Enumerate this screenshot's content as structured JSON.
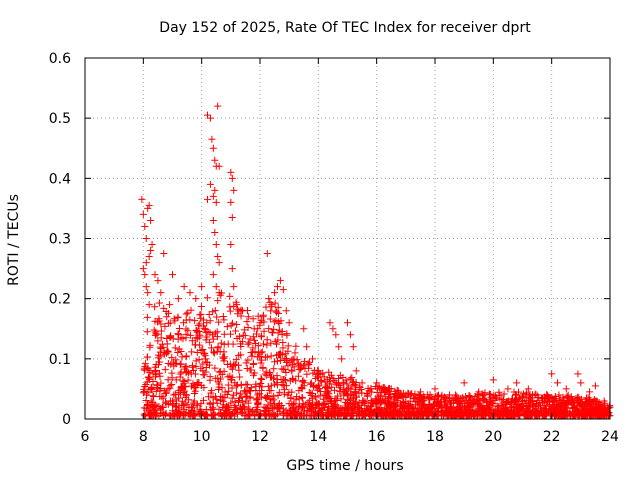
{
  "chart_data": {
    "type": "scatter",
    "title": "Day 152 of 2025, Rate Of TEC Index for receiver dprt",
    "xlabel": "GPS time / hours",
    "ylabel": "ROTI / TECUs",
    "xlim": [
      6,
      24
    ],
    "ylim": [
      0,
      0.6
    ],
    "xticks": [
      "6",
      "8",
      "10",
      "12",
      "14",
      "16",
      "18",
      "20",
      "22",
      "24"
    ],
    "yticks": [
      "0",
      "0.1",
      "0.2",
      "0.3",
      "0.4",
      "0.5",
      "0.6"
    ],
    "grid": true,
    "marker": "+",
    "color": "#ff0000",
    "series": [
      {
        "name": "ROTI",
        "points": [
          [
            7.95,
            0.365
          ],
          [
            8.0,
            0.34
          ],
          [
            8.05,
            0.32
          ],
          [
            8.1,
            0.3
          ],
          [
            8.15,
            0.35
          ],
          [
            8.2,
            0.355
          ],
          [
            8.25,
            0.33
          ],
          [
            8.1,
            0.26
          ],
          [
            8.2,
            0.27
          ],
          [
            8.0,
            0.25
          ],
          [
            8.05,
            0.24
          ],
          [
            8.1,
            0.22
          ],
          [
            8.3,
            0.29
          ],
          [
            8.25,
            0.28
          ],
          [
            8.15,
            0.21
          ],
          [
            8.2,
            0.19
          ],
          [
            8.4,
            0.24
          ],
          [
            8.5,
            0.23
          ],
          [
            8.7,
            0.275
          ],
          [
            8.6,
            0.21
          ],
          [
            8.8,
            0.17
          ],
          [
            8.9,
            0.19
          ],
          [
            9.0,
            0.24
          ],
          [
            9.2,
            0.2
          ],
          [
            9.4,
            0.22
          ],
          [
            9.6,
            0.21
          ],
          [
            9.8,
            0.2
          ],
          [
            10.0,
            0.22
          ],
          [
            10.2,
            0.505
          ],
          [
            10.3,
            0.5
          ],
          [
            10.35,
            0.465
          ],
          [
            10.4,
            0.45
          ],
          [
            10.45,
            0.43
          ],
          [
            10.5,
            0.42
          ],
          [
            10.55,
            0.52
          ],
          [
            10.6,
            0.42
          ],
          [
            10.3,
            0.39
          ],
          [
            10.4,
            0.37
          ],
          [
            10.45,
            0.38
          ],
          [
            10.5,
            0.36
          ],
          [
            10.2,
            0.365
          ],
          [
            10.4,
            0.33
          ],
          [
            10.45,
            0.31
          ],
          [
            10.5,
            0.29
          ],
          [
            10.55,
            0.27
          ],
          [
            10.6,
            0.26
          ],
          [
            10.4,
            0.24
          ],
          [
            10.5,
            0.22
          ],
          [
            10.6,
            0.21
          ],
          [
            11.0,
            0.41
          ],
          [
            11.05,
            0.4
          ],
          [
            11.1,
            0.38
          ],
          [
            11.0,
            0.36
          ],
          [
            11.05,
            0.335
          ],
          [
            11.0,
            0.29
          ],
          [
            11.05,
            0.25
          ],
          [
            11.1,
            0.22
          ],
          [
            11.2,
            0.19
          ],
          [
            11.4,
            0.18
          ],
          [
            11.6,
            0.17
          ],
          [
            11.8,
            0.15
          ],
          [
            12.0,
            0.16
          ],
          [
            12.25,
            0.275
          ],
          [
            12.3,
            0.2
          ],
          [
            12.4,
            0.19
          ],
          [
            12.5,
            0.21
          ],
          [
            12.6,
            0.22
          ],
          [
            12.7,
            0.23
          ],
          [
            12.8,
            0.215
          ],
          [
            12.9,
            0.18
          ],
          [
            13.0,
            0.16
          ],
          [
            13.2,
            0.11
          ],
          [
            13.4,
            0.09
          ],
          [
            13.5,
            0.15
          ],
          [
            13.6,
            0.12
          ],
          [
            13.8,
            0.1
          ],
          [
            14.0,
            0.08
          ],
          [
            14.2,
            0.07
          ],
          [
            14.4,
            0.16
          ],
          [
            14.5,
            0.15
          ],
          [
            14.6,
            0.14
          ],
          [
            14.7,
            0.12
          ],
          [
            14.8,
            0.1
          ],
          [
            15.0,
            0.16
          ],
          [
            15.1,
            0.14
          ],
          [
            15.2,
            0.12
          ],
          [
            15.3,
            0.08
          ],
          [
            15.5,
            0.06
          ],
          [
            15.8,
            0.05
          ],
          [
            16.0,
            0.06
          ],
          [
            16.5,
            0.05
          ],
          [
            17.0,
            0.04
          ],
          [
            17.5,
            0.045
          ],
          [
            18.0,
            0.05
          ],
          [
            18.5,
            0.04
          ],
          [
            19.0,
            0.06
          ],
          [
            19.5,
            0.045
          ],
          [
            20.0,
            0.065
          ],
          [
            20.5,
            0.05
          ],
          [
            20.8,
            0.06
          ],
          [
            21.2,
            0.05
          ],
          [
            21.5,
            0.04
          ],
          [
            22.0,
            0.075
          ],
          [
            22.2,
            0.06
          ],
          [
            22.5,
            0.05
          ],
          [
            22.9,
            0.075
          ],
          [
            23.0,
            0.06
          ],
          [
            23.3,
            0.045
          ],
          [
            23.5,
            0.055
          ],
          [
            23.8,
            0.03
          ],
          [
            24.0,
            0.02
          ]
        ],
        "bulk_envelope": [
          [
            8.0,
            0.18
          ],
          [
            8.5,
            0.19
          ],
          [
            9.0,
            0.17
          ],
          [
            9.5,
            0.18
          ],
          [
            10.0,
            0.19
          ],
          [
            10.5,
            0.21
          ],
          [
            11.0,
            0.2
          ],
          [
            11.5,
            0.18
          ],
          [
            12.0,
            0.17
          ],
          [
            12.5,
            0.2
          ],
          [
            13.0,
            0.14
          ],
          [
            13.5,
            0.1
          ],
          [
            14.0,
            0.08
          ],
          [
            14.5,
            0.07
          ],
          [
            15.0,
            0.07
          ],
          [
            15.5,
            0.05
          ],
          [
            16.0,
            0.05
          ],
          [
            17.0,
            0.04
          ],
          [
            18.0,
            0.035
          ],
          [
            19.0,
            0.035
          ],
          [
            20.0,
            0.04
          ],
          [
            21.0,
            0.04
          ],
          [
            22.0,
            0.035
          ],
          [
            23.0,
            0.035
          ],
          [
            24.0,
            0.02
          ]
        ]
      }
    ]
  }
}
